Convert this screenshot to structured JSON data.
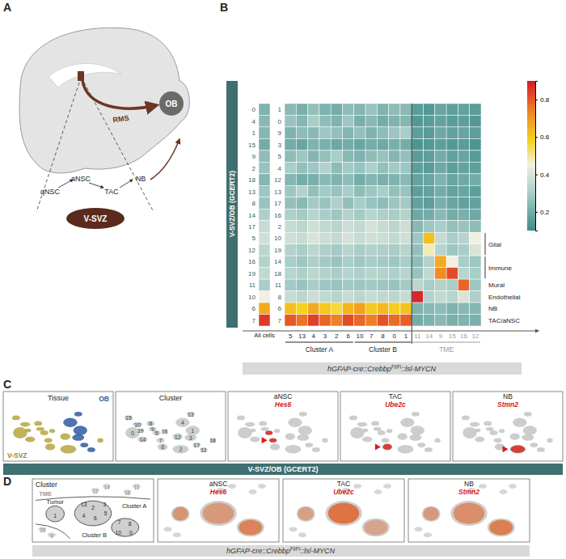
{
  "figure": {
    "panel_labels": [
      "A",
      "B",
      "C",
      "D"
    ],
    "genotype": [
      "hGFAP-cre::Crebbp",
      "Fl/Fl",
      "::lsl-MYCN"
    ],
    "reference": "V-SVZ/OB (GCERT2)",
    "panel_a": {
      "ob": "OB",
      "rms": "RMS",
      "vsvz": "V-SVZ",
      "lineage": [
        "qNSC",
        "aNSC",
        "TAC",
        "NB"
      ]
    },
    "panel_c": {
      "tissue": {
        "title": "Tissue",
        "legend": [
          "V-SVZ",
          "OB"
        ]
      },
      "cluster": {
        "title": "Cluster",
        "labels": [
          "0",
          "1",
          "2",
          "3",
          "4",
          "5",
          "6",
          "7",
          "8",
          "9",
          "10",
          "11",
          "12",
          "13",
          "14",
          "15",
          "16",
          "17",
          "18",
          "19"
        ]
      },
      "markers": [
        {
          "title": "aNSC",
          "gene": "Hes6"
        },
        {
          "title": "TAC",
          "gene": "Ube2c"
        },
        {
          "title": "NB",
          "gene": "Stmn2"
        }
      ]
    },
    "panel_d": {
      "cluster": {
        "title": "Cluster",
        "regions": [
          {
            "name": "TME",
            "clusters": [
              "14",
              "11",
              "12",
              "16",
              "15",
              "9"
            ]
          },
          {
            "name": "Tumor",
            "clusters": [
              "1"
            ]
          },
          {
            "name": "Cluster A",
            "clusters": [
              "13",
              "2",
              "3",
              "6",
              "5",
              "4"
            ]
          },
          {
            "name": "Cluster B",
            "clusters": [
              "8",
              "7",
              "10",
              "0"
            ]
          }
        ]
      },
      "markers": [
        {
          "title": "aNSC",
          "gene": "Hes6"
        },
        {
          "title": "TAC",
          "gene": "Ube2c"
        },
        {
          "title": "NB",
          "gene": "Stmn2"
        }
      ]
    }
  },
  "chart_data": {
    "type": "heatmap",
    "y_label": "V-SVZ/OB (GCERT2)",
    "all_cells_label": "All cells",
    "row_labels_all": [
      "0",
      "4",
      "1",
      "15",
      "9",
      "2",
      "18",
      "13",
      "8",
      "14",
      "17",
      "5",
      "12",
      "16",
      "19",
      "11",
      "10",
      "6",
      "7"
    ],
    "row_labels": [
      "1",
      "0",
      "9",
      "3",
      "5",
      "4",
      "12",
      "13",
      "17",
      "16",
      "2",
      "10",
      "19",
      "14",
      "18",
      "11",
      "8",
      "6",
      "7"
    ],
    "columns": [
      "5",
      "13",
      "4",
      "3",
      "2",
      "6",
      "10",
      "7",
      "8",
      "0",
      "1",
      "11",
      "14",
      "9",
      "15",
      "16",
      "12"
    ],
    "column_groups": [
      {
        "label": "Cluster A",
        "columns": [
          "5",
          "13",
          "4",
          "3",
          "2",
          "6"
        ],
        "color": "#222222"
      },
      {
        "label": "Cluster B",
        "columns": [
          "10",
          "7",
          "8",
          "0",
          "1"
        ],
        "color": "#222222"
      },
      {
        "label": "TME",
        "columns": [
          "11",
          "14",
          "9",
          "15",
          "16",
          "12"
        ],
        "color": "#9a9a9a"
      }
    ],
    "row_annotations": [
      {
        "label": "Glial",
        "rows": [
          "5",
          "12"
        ]
      },
      {
        "label": "Immune",
        "rows": [
          "16",
          "19"
        ]
      },
      {
        "label": "Mural",
        "rows": [
          "11"
        ]
      },
      {
        "label": "Endothelial",
        "rows": [
          "10"
        ]
      },
      {
        "label": "NB",
        "rows": [
          "6"
        ]
      },
      {
        "label": "TAC/aNSC",
        "rows": [
          "7"
        ]
      }
    ],
    "all_cells": [
      0.22,
      0.24,
      0.23,
      0.2,
      0.25,
      0.27,
      0.23,
      0.28,
      0.27,
      0.31,
      0.36,
      0.38,
      0.34,
      0.32,
      0.35,
      0.3,
      0.45,
      0.66,
      0.85
    ],
    "cells": [
      [
        0.24,
        0.21,
        0.26,
        0.22,
        0.2,
        0.25,
        0.23,
        0.27,
        0.22,
        0.25,
        0.24,
        0.15,
        0.14,
        0.18,
        0.16,
        0.17,
        0.15
      ],
      [
        0.27,
        0.23,
        0.3,
        0.25,
        0.22,
        0.28,
        0.21,
        0.24,
        0.2,
        0.22,
        0.23,
        0.14,
        0.15,
        0.17,
        0.15,
        0.16,
        0.14
      ],
      [
        0.22,
        0.25,
        0.24,
        0.28,
        0.26,
        0.23,
        0.26,
        0.22,
        0.25,
        0.28,
        0.3,
        0.16,
        0.15,
        0.19,
        0.17,
        0.18,
        0.16
      ],
      [
        0.2,
        0.18,
        0.22,
        0.21,
        0.19,
        0.2,
        0.18,
        0.2,
        0.19,
        0.21,
        0.2,
        0.13,
        0.14,
        0.16,
        0.14,
        0.15,
        0.13
      ],
      [
        0.25,
        0.28,
        0.23,
        0.26,
        0.3,
        0.24,
        0.22,
        0.25,
        0.27,
        0.23,
        0.26,
        0.15,
        0.16,
        0.2,
        0.17,
        0.18,
        0.15
      ],
      [
        0.3,
        0.26,
        0.28,
        0.32,
        0.25,
        0.29,
        0.27,
        0.31,
        0.26,
        0.29,
        0.28,
        0.16,
        0.15,
        0.19,
        0.16,
        0.17,
        0.16
      ],
      [
        0.23,
        0.2,
        0.21,
        0.24,
        0.22,
        0.25,
        0.2,
        0.23,
        0.21,
        0.22,
        0.24,
        0.17,
        0.18,
        0.22,
        0.18,
        0.19,
        0.2
      ],
      [
        0.28,
        0.32,
        0.26,
        0.29,
        0.27,
        0.3,
        0.25,
        0.28,
        0.3,
        0.26,
        0.27,
        0.16,
        0.17,
        0.2,
        0.17,
        0.18,
        0.16
      ],
      [
        0.26,
        0.24,
        0.29,
        0.27,
        0.31,
        0.26,
        0.3,
        0.27,
        0.25,
        0.28,
        0.29,
        0.17,
        0.16,
        0.21,
        0.18,
        0.17,
        0.17
      ],
      [
        0.31,
        0.29,
        0.33,
        0.3,
        0.28,
        0.32,
        0.29,
        0.33,
        0.31,
        0.3,
        0.32,
        0.19,
        0.2,
        0.24,
        0.2,
        0.21,
        0.19
      ],
      [
        0.36,
        0.34,
        0.38,
        0.35,
        0.33,
        0.37,
        0.35,
        0.39,
        0.36,
        0.34,
        0.37,
        0.24,
        0.28,
        0.3,
        0.26,
        0.27,
        0.25
      ],
      [
        0.38,
        0.36,
        0.4,
        0.37,
        0.35,
        0.39,
        0.36,
        0.38,
        0.37,
        0.35,
        0.38,
        0.28,
        0.62,
        0.36,
        0.3,
        0.33,
        0.45
      ],
      [
        0.32,
        0.3,
        0.34,
        0.31,
        0.29,
        0.33,
        0.3,
        0.32,
        0.31,
        0.3,
        0.33,
        0.26,
        0.48,
        0.33,
        0.28,
        0.3,
        0.4
      ],
      [
        0.3,
        0.28,
        0.31,
        0.29,
        0.27,
        0.3,
        0.28,
        0.3,
        0.29,
        0.28,
        0.3,
        0.25,
        0.32,
        0.66,
        0.45,
        0.3,
        0.28
      ],
      [
        0.33,
        0.31,
        0.34,
        0.32,
        0.3,
        0.33,
        0.31,
        0.33,
        0.32,
        0.31,
        0.33,
        0.27,
        0.35,
        0.72,
        0.82,
        0.33,
        0.3
      ],
      [
        0.29,
        0.27,
        0.3,
        0.28,
        0.27,
        0.29,
        0.28,
        0.29,
        0.28,
        0.27,
        0.29,
        0.34,
        0.3,
        0.32,
        0.3,
        0.78,
        0.28
      ],
      [
        0.36,
        0.34,
        0.37,
        0.35,
        0.33,
        0.36,
        0.34,
        0.36,
        0.35,
        0.34,
        0.36,
        0.88,
        0.32,
        0.35,
        0.33,
        0.4,
        0.31
      ],
      [
        0.62,
        0.58,
        0.66,
        0.6,
        0.56,
        0.64,
        0.68,
        0.6,
        0.63,
        0.59,
        0.61,
        0.22,
        0.24,
        0.25,
        0.22,
        0.24,
        0.23
      ],
      [
        0.8,
        0.76,
        0.84,
        0.78,
        0.74,
        0.82,
        0.78,
        0.74,
        0.81,
        0.77,
        0.79,
        0.2,
        0.22,
        0.24,
        0.21,
        0.22,
        0.21
      ]
    ],
    "colorbar": {
      "range": [
        0.1,
        0.9
      ],
      "ticks": [
        0.2,
        0.4,
        0.6,
        0.8
      ]
    }
  }
}
